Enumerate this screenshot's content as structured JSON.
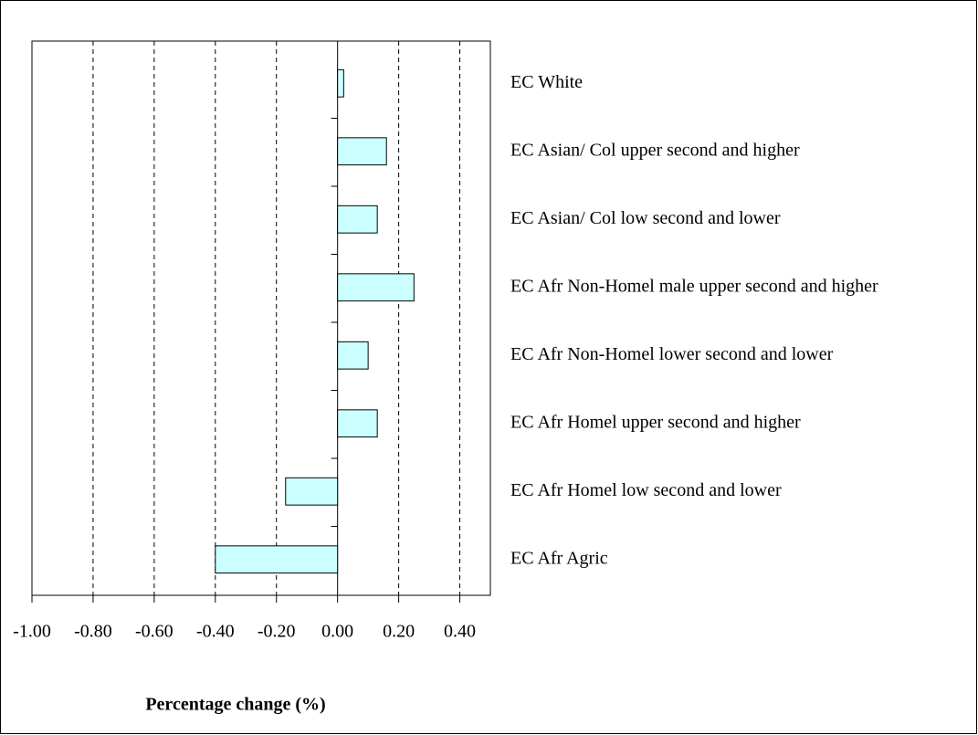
{
  "chart_data": {
    "type": "bar",
    "orientation": "horizontal",
    "x_label": "Percentage change (%)",
    "categories": [
      "EC White",
      "EC Asian/ Col upper second and higher",
      "EC Asian/ Col low second and lower",
      "EC Afr Non-Homel male upper second and higher",
      "EC Afr Non-Homel lower second and lower",
      "EC Afr Homel upper second and higher",
      "EC Afr Homel low second and lower",
      "EC Afr Agric"
    ],
    "values": [
      0.02,
      0.16,
      0.13,
      0.25,
      0.1,
      0.13,
      -0.17,
      -0.4
    ],
    "color": "#ccffff",
    "xlim": [
      -1.0,
      0.5
    ],
    "xticks": [
      {
        "value": -1.0,
        "label": "-1.00"
      },
      {
        "value": -0.8,
        "label": "-0.80"
      },
      {
        "value": -0.6,
        "label": "-0.60"
      },
      {
        "value": -0.4,
        "label": "-0.40"
      },
      {
        "value": -0.2,
        "label": "-0.20"
      },
      {
        "value": 0,
        "label": "0.00"
      },
      {
        "value": 0.2,
        "label": "0.20"
      },
      {
        "value": 0.4,
        "label": "0.40"
      }
    ],
    "grid": true
  }
}
